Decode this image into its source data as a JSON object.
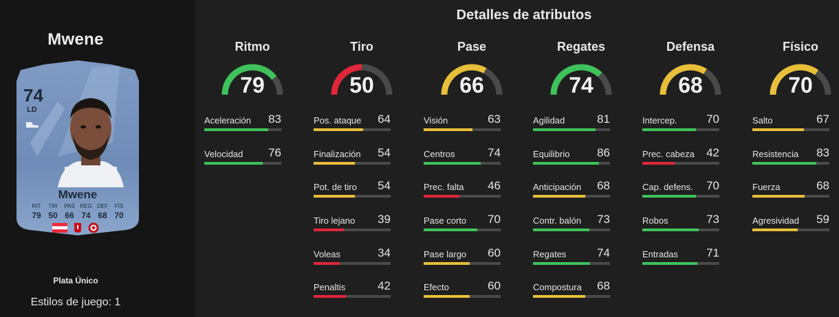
{
  "player": {
    "title": "Mwene",
    "card": {
      "rating": "74",
      "position": "LD",
      "name": "Mwene",
      "stat_labels": [
        "RIT",
        "TIR",
        "PAS",
        "REG",
        "DEF",
        "FÍS"
      ],
      "stat_values": [
        "79",
        "50",
        "66",
        "74",
        "68",
        "70"
      ]
    },
    "tier": "Plata Único",
    "playstyles": "Estilos de juego: 1"
  },
  "panel_title": "Detalles de atributos",
  "colors": {
    "green": "#3fc25a",
    "yellow": "#e8bf3a",
    "red": "#e0273a",
    "track": "#4a4a4a"
  },
  "categories": [
    {
      "name": "Ritmo",
      "value": "79",
      "color": "green",
      "attrs": [
        {
          "label": "Aceleración",
          "value": "83"
        },
        {
          "label": "Velocidad",
          "value": "76"
        }
      ]
    },
    {
      "name": "Tiro",
      "value": "50",
      "color": "red",
      "attrs": [
        {
          "label": "Pos. ataque",
          "value": "64"
        },
        {
          "label": "Finalización",
          "value": "54"
        },
        {
          "label": "Pot. de tiro",
          "value": "54"
        },
        {
          "label": "Tiro lejano",
          "value": "39"
        },
        {
          "label": "Voleas",
          "value": "34"
        },
        {
          "label": "Penaltis",
          "value": "42"
        }
      ]
    },
    {
      "name": "Pase",
      "value": "66",
      "color": "yellow",
      "attrs": [
        {
          "label": "Visión",
          "value": "63"
        },
        {
          "label": "Centros",
          "value": "74"
        },
        {
          "label": "Prec. falta",
          "value": "46"
        },
        {
          "label": "Pase corto",
          "value": "70"
        },
        {
          "label": "Pase largo",
          "value": "60"
        },
        {
          "label": "Efecto",
          "value": "60"
        }
      ]
    },
    {
      "name": "Regates",
      "value": "74",
      "color": "green",
      "attrs": [
        {
          "label": "Agilidad",
          "value": "81"
        },
        {
          "label": "Equilibrio",
          "value": "86"
        },
        {
          "label": "Anticipación",
          "value": "68"
        },
        {
          "label": "Contr. balón",
          "value": "73"
        },
        {
          "label": "Regates",
          "value": "74"
        },
        {
          "label": "Compostura",
          "value": "68"
        }
      ]
    },
    {
      "name": "Defensa",
      "value": "68",
      "color": "yellow",
      "attrs": [
        {
          "label": "Intercep.",
          "value": "70"
        },
        {
          "label": "Prec. cabeza",
          "value": "42"
        },
        {
          "label": "Cap. defens.",
          "value": "70"
        },
        {
          "label": "Robos",
          "value": "73"
        },
        {
          "label": "Entradas",
          "value": "71"
        }
      ]
    },
    {
      "name": "Físico",
      "value": "70",
      "color": "yellow",
      "attrs": [
        {
          "label": "Salto",
          "value": "67"
        },
        {
          "label": "Resistencia",
          "value": "83"
        },
        {
          "label": "Fuerza",
          "value": "68"
        },
        {
          "label": "Agresividad",
          "value": "59"
        }
      ]
    }
  ]
}
